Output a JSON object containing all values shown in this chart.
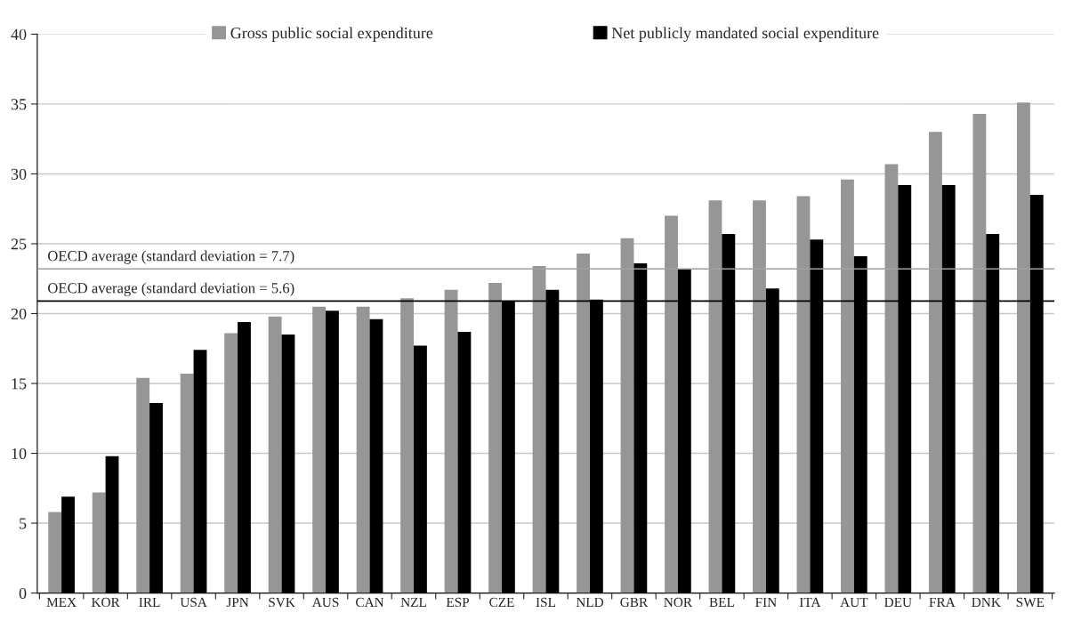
{
  "chart_data": {
    "type": "bar",
    "categories": [
      "MEX",
      "KOR",
      "IRL",
      "USA",
      "JPN",
      "SVK",
      "AUS",
      "CAN",
      "NZL",
      "ESP",
      "CZE",
      "ISL",
      "NLD",
      "GBR",
      "NOR",
      "BEL",
      "FIN",
      "ITA",
      "AUT",
      "DEU",
      "FRA",
      "DNK",
      "SWE"
    ],
    "series": [
      {
        "name": "Gross public social expenditure",
        "color": "#969696",
        "values": [
          5.8,
          7.2,
          15.4,
          15.7,
          18.6,
          19.8,
          20.5,
          20.5,
          21.1,
          21.7,
          22.2,
          23.4,
          24.3,
          25.4,
          27.0,
          28.1,
          28.1,
          28.4,
          29.6,
          30.7,
          33.0,
          34.3,
          35.1
        ]
      },
      {
        "name": "Net publicly mandated social expenditure",
        "color": "#000000",
        "values": [
          6.9,
          9.8,
          13.6,
          17.4,
          19.4,
          18.5,
          20.2,
          19.6,
          17.7,
          18.7,
          20.9,
          21.7,
          21.0,
          23.6,
          23.2,
          25.7,
          21.8,
          25.3,
          24.1,
          29.2,
          29.2,
          25.7,
          28.5
        ]
      }
    ],
    "ylim": [
      0,
      40
    ],
    "yticks": [
      0,
      5,
      10,
      15,
      20,
      25,
      30,
      35,
      40
    ],
    "grid": "y",
    "legend": "top",
    "ref_lines": [
      {
        "axis": "y",
        "value": 23.2,
        "color": "#a0a0a0"
      },
      {
        "axis": "y",
        "value": 20.9,
        "color": "#000000"
      }
    ],
    "annotations": [
      "OECD average (standard deviation = 7.7)",
      "OECD average (standard deviation = 5.6)"
    ]
  }
}
